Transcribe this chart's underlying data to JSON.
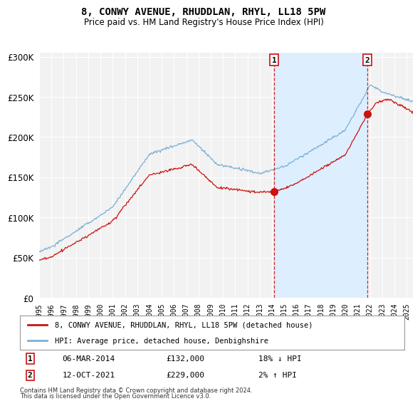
{
  "title": "8, CONWY AVENUE, RHUDDLAN, RHYL, LL18 5PW",
  "subtitle": "Price paid vs. HM Land Registry's House Price Index (HPI)",
  "legend_label1": "8, CONWY AVENUE, RHUDDLAN, RHYL, LL18 5PW (detached house)",
  "legend_label2": "HPI: Average price, detached house, Denbighshire",
  "marker1_date": "06-MAR-2014",
  "marker1_price": "£132,000",
  "marker1_pct": "18% ↓ HPI",
  "marker1_year": 2014.17,
  "marker1_value": 132000,
  "marker2_date": "12-OCT-2021",
  "marker2_price": "£229,000",
  "marker2_pct": "2% ↑ HPI",
  "marker2_year": 2021.78,
  "marker2_value": 229000,
  "footnote1": "Contains HM Land Registry data © Crown copyright and database right 2024.",
  "footnote2": "This data is licensed under the Open Government Licence v3.0.",
  "hpi_color": "#7bafd4",
  "price_color": "#cc1111",
  "marker_color": "#cc1111",
  "background_color": "#ffffff",
  "plot_bg_color": "#f2f2f2",
  "grid_color": "#ffffff",
  "shade_color": "#ddeeff",
  "ylim_min": 0,
  "ylim_max": 305000,
  "xlim_min": 1995,
  "xlim_max": 2025.5
}
